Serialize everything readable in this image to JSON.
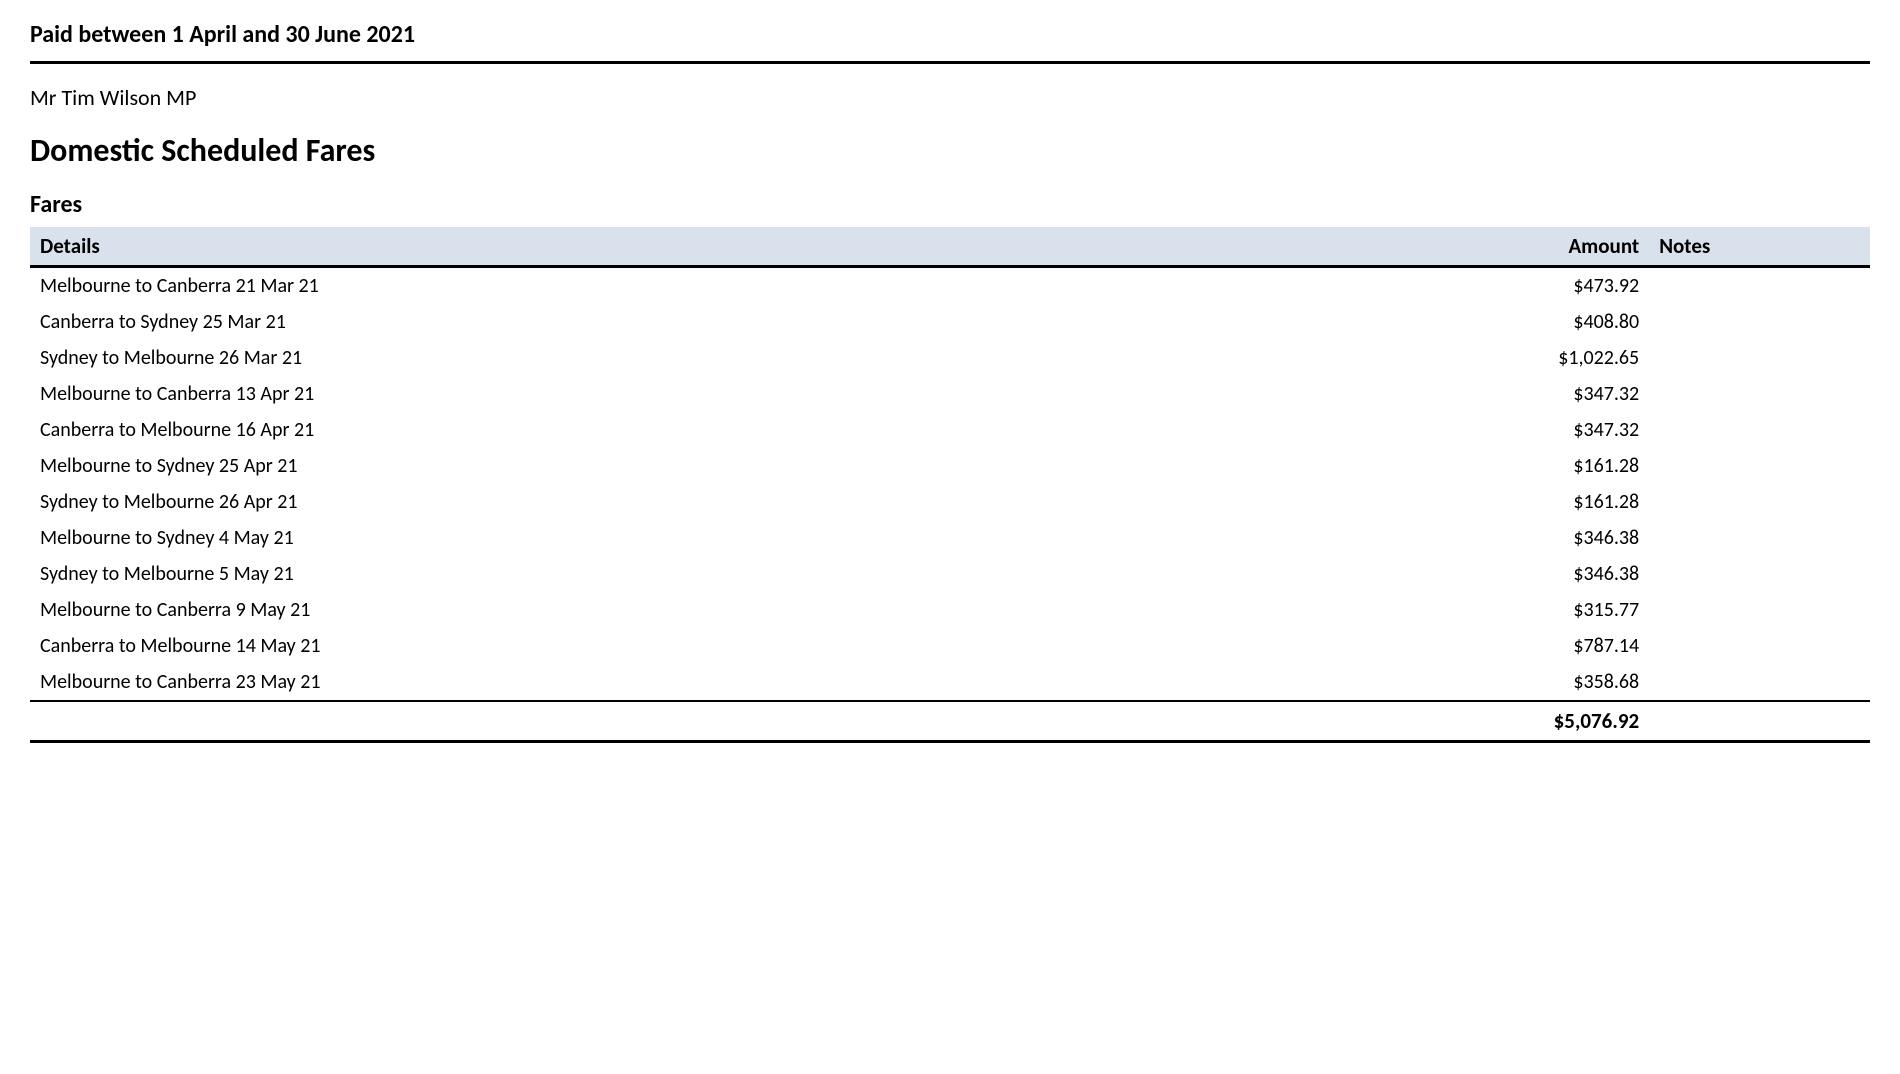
{
  "period_header": "Paid between 1 April and 30 June 2021",
  "mp_name": "Mr Tim Wilson MP",
  "section_title": "Domestic Scheduled Fares",
  "subsection_title": "Fares",
  "table": {
    "columns": {
      "details": "Details",
      "amount": "Amount",
      "notes": "Notes"
    },
    "rows": [
      {
        "details": "Melbourne to Canberra 21 Mar 21",
        "amount": "$473.92",
        "notes": ""
      },
      {
        "details": "Canberra to Sydney 25 Mar 21",
        "amount": "$408.80",
        "notes": ""
      },
      {
        "details": "Sydney to Melbourne 26 Mar 21",
        "amount": "$1,022.65",
        "notes": ""
      },
      {
        "details": "Melbourne to Canberra 13 Apr 21",
        "amount": "$347.32",
        "notes": ""
      },
      {
        "details": "Canberra to Melbourne 16 Apr 21",
        "amount": "$347.32",
        "notes": ""
      },
      {
        "details": "Melbourne to Sydney 25 Apr 21",
        "amount": "$161.28",
        "notes": ""
      },
      {
        "details": "Sydney to Melbourne 26 Apr 21",
        "amount": "$161.28",
        "notes": ""
      },
      {
        "details": "Melbourne to Sydney 4 May 21",
        "amount": "$346.38",
        "notes": ""
      },
      {
        "details": "Sydney to Melbourne 5 May 21",
        "amount": "$346.38",
        "notes": ""
      },
      {
        "details": "Melbourne to Canberra 9 May 21",
        "amount": "$315.77",
        "notes": ""
      },
      {
        "details": "Canberra to Melbourne 14 May 21",
        "amount": "$787.14",
        "notes": ""
      },
      {
        "details": "Melbourne to Canberra 23 May 21",
        "amount": "$358.68",
        "notes": ""
      }
    ],
    "total": "$5,076.92"
  },
  "colors": {
    "header_bg": "#d9e1ed",
    "text": "#000000",
    "background": "#ffffff"
  }
}
